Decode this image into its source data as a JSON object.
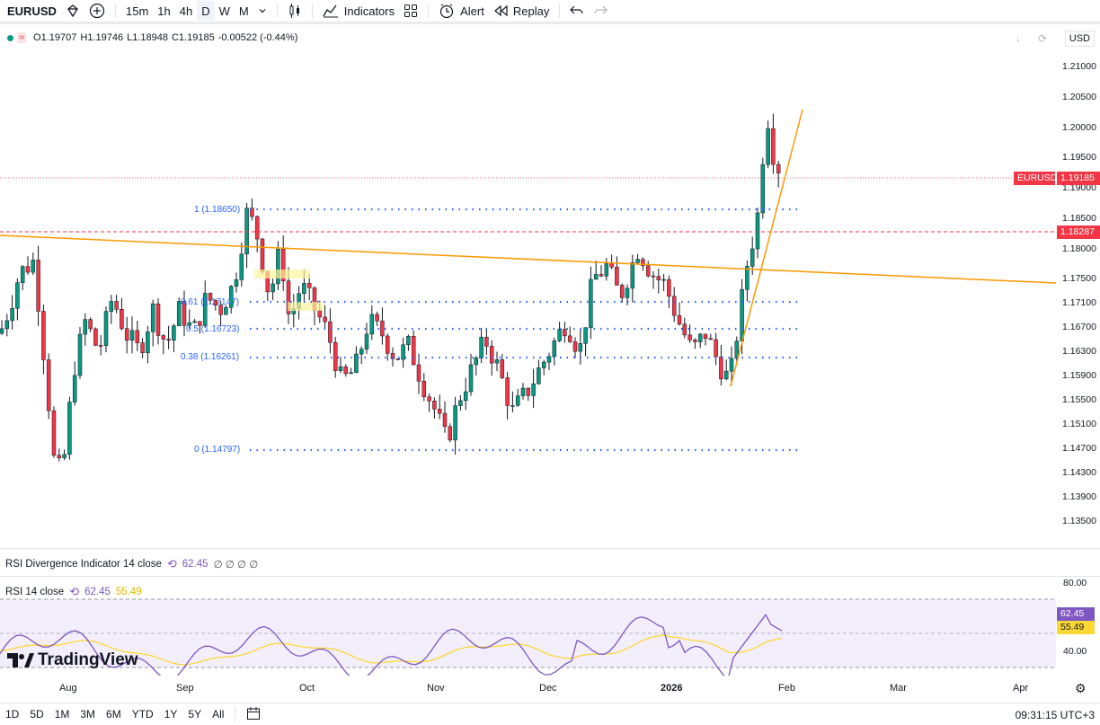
{
  "toolbar": {
    "symbol": "EURUSD",
    "intervals": [
      "15m",
      "1h",
      "4h",
      "D",
      "W",
      "M"
    ],
    "selected_interval": "D",
    "indicators_label": "Indicators",
    "alert_label": "Alert",
    "replay_label": "Replay"
  },
  "legend": {
    "open": "O1.19707",
    "high": "H1.19746",
    "low": "L1.18948",
    "close": "C1.19185",
    "change": "-0.00522 (-0.44%)",
    "currency": "USD"
  },
  "price_axis": [
    "1.21000",
    "1.20500",
    "1.20000",
    "1.19500",
    "1.19000",
    "1.18500",
    "1.18000",
    "1.17500",
    "1.17100",
    "1.16700",
    "1.16300",
    "1.15900",
    "1.15500",
    "1.15100",
    "1.14700",
    "1.14300",
    "1.13900",
    "1.13500"
  ],
  "tags": {
    "last_symbol": "EURUSD",
    "last_price": "1.19185",
    "line_price": "1.18287"
  },
  "fib": {
    "levels": [
      "1 (1.18650)",
      "0.61 (1.17147)",
      "0.5 (1.16723)",
      "0.38 (1.16261)",
      "0 (1.14797)"
    ]
  },
  "rsi_div": {
    "title": "RSI Divergence Indicator 14 close",
    "value": "62.45",
    "zeros": "∅ ∅ ∅ ∅"
  },
  "rsi": {
    "title": "RSI 14 close",
    "value": "62.45",
    "ma": "55.49",
    "axis": [
      "80.00",
      "40.00"
    ]
  },
  "time_axis": [
    "Aug",
    "Sep",
    "Oct",
    "Nov",
    "Dec",
    "2026",
    "Feb",
    "Mar",
    "Apr"
  ],
  "ranges": [
    "1D",
    "5D",
    "1M",
    "3M",
    "6M",
    "YTD",
    "1Y",
    "5Y",
    "All"
  ],
  "clock": "09:31:15 UTC+3",
  "brand": "TradingView",
  "colors": {
    "up": "#089981",
    "down": "#f23645",
    "trend": "#ff9800",
    "fib": "#2962ff",
    "rsi": "#7e57c2",
    "rsi_ma": "#fdd835"
  },
  "chart_data": {
    "type": "candlestick",
    "symbol": "EURUSD",
    "ylim": [
      1.133,
      1.212
    ],
    "last_close": 1.19185,
    "candles_summary": [
      {
        "month": "Aug",
        "range": [
          1.14,
          1.18
        ]
      },
      {
        "month": "Sep",
        "range": [
          1.157,
          1.192
        ]
      },
      {
        "month": "Oct",
        "range": [
          1.154,
          1.177
        ]
      },
      {
        "month": "Nov",
        "range": [
          1.147,
          1.165
        ]
      },
      {
        "month": "Dec",
        "range": [
          1.158,
          1.181
        ]
      },
      {
        "month": "Jan",
        "range": [
          1.158,
          1.2081
        ]
      }
    ],
    "rsi_last": 62.45,
    "rsi_ma_last": 55.49
  }
}
